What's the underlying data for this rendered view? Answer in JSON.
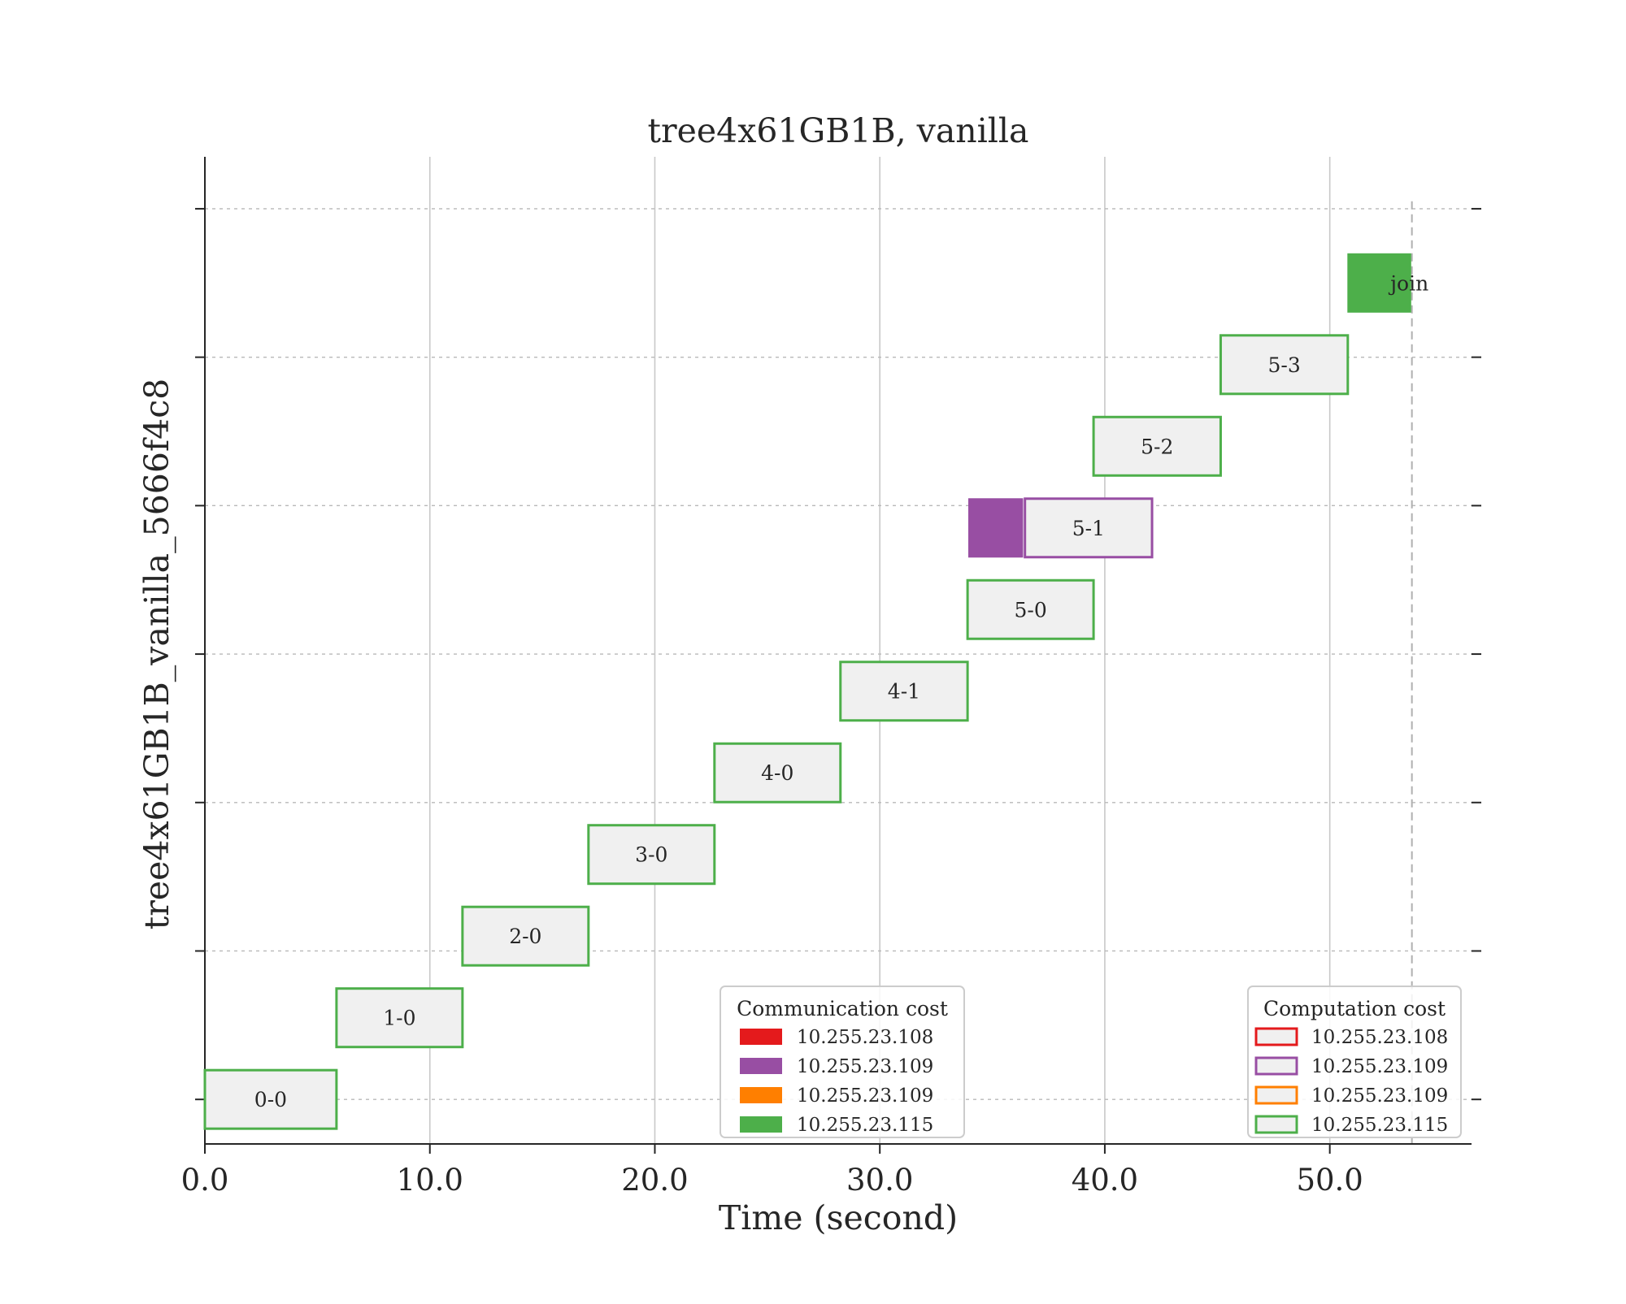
{
  "chart_data": {
    "type": "gantt",
    "title": "tree4x61GB1B, vanilla",
    "xlabel": "Time (second)",
    "ylabel": "tree4x61GB1B_vanilla_5666f4c8",
    "xlim": [
      0,
      56.3
    ],
    "xticks": [
      0,
      10,
      20,
      30,
      40,
      50
    ],
    "xtick_labels": [
      "0.0",
      "10.0",
      "20.0",
      "30.0",
      "40.0",
      "50.0"
    ],
    "ylim": [
      -0.3,
      6.35
    ],
    "y_gridlines": [
      0,
      1,
      2,
      3,
      4,
      5,
      6
    ],
    "x_grid": true,
    "end_marker_x": 53.65,
    "colors": {
      "host_108": "#e41a1c",
      "host_109_purple": "#984ea3",
      "host_109_orange": "#ff7f00",
      "host_115": "#4daf4a",
      "bar_fill": "#f0f0f0",
      "grid": "#c8c8c8",
      "axis": "#262626"
    },
    "computation_tasks": [
      {
        "label": "0-0",
        "start": 0.0,
        "end": 5.85,
        "y": 0.0,
        "host": "host_115"
      },
      {
        "label": "1-0",
        "start": 5.85,
        "end": 11.45,
        "y": 0.55,
        "host": "host_115"
      },
      {
        "label": "2-0",
        "start": 11.45,
        "end": 17.05,
        "y": 1.1,
        "host": "host_115"
      },
      {
        "label": "3-0",
        "start": 17.05,
        "end": 22.65,
        "y": 1.65,
        "host": "host_115"
      },
      {
        "label": "4-0",
        "start": 22.65,
        "end": 28.25,
        "y": 2.2,
        "host": "host_115"
      },
      {
        "label": "4-1",
        "start": 28.25,
        "end": 33.9,
        "y": 2.75,
        "host": "host_115"
      },
      {
        "label": "5-0",
        "start": 33.9,
        "end": 39.5,
        "y": 3.3,
        "host": "host_115"
      },
      {
        "label": "5-1",
        "start": 36.45,
        "end": 42.1,
        "y": 3.85,
        "host": "host_109_purple"
      },
      {
        "label": "5-2",
        "start": 39.5,
        "end": 45.15,
        "y": 4.4,
        "host": "host_115"
      },
      {
        "label": "5-3",
        "start": 45.15,
        "end": 50.8,
        "y": 4.95,
        "host": "host_115"
      }
    ],
    "communication_tasks": [
      {
        "label": "",
        "start": 33.95,
        "end": 36.35,
        "y": 3.85,
        "host": "host_109_purple"
      },
      {
        "label": "join",
        "start": 50.8,
        "end": 53.6,
        "y": 5.5,
        "host": "host_115"
      }
    ],
    "legends": [
      {
        "title": "Communication cost",
        "style": "filled",
        "placement": "lower center",
        "entries": [
          {
            "label": "10.255.23.108",
            "color": "#e41a1c"
          },
          {
            "label": "10.255.23.109",
            "color": "#984ea3"
          },
          {
            "label": "10.255.23.109",
            "color": "#ff7f00"
          },
          {
            "label": "10.255.23.115",
            "color": "#4daf4a"
          }
        ]
      },
      {
        "title": "Computation cost",
        "style": "outlined",
        "placement": "lower right",
        "entries": [
          {
            "label": "10.255.23.108",
            "color": "#e41a1c"
          },
          {
            "label": "10.255.23.109",
            "color": "#984ea3"
          },
          {
            "label": "10.255.23.109",
            "color": "#ff7f00"
          },
          {
            "label": "10.255.23.115",
            "color": "#4daf4a"
          }
        ]
      }
    ]
  }
}
